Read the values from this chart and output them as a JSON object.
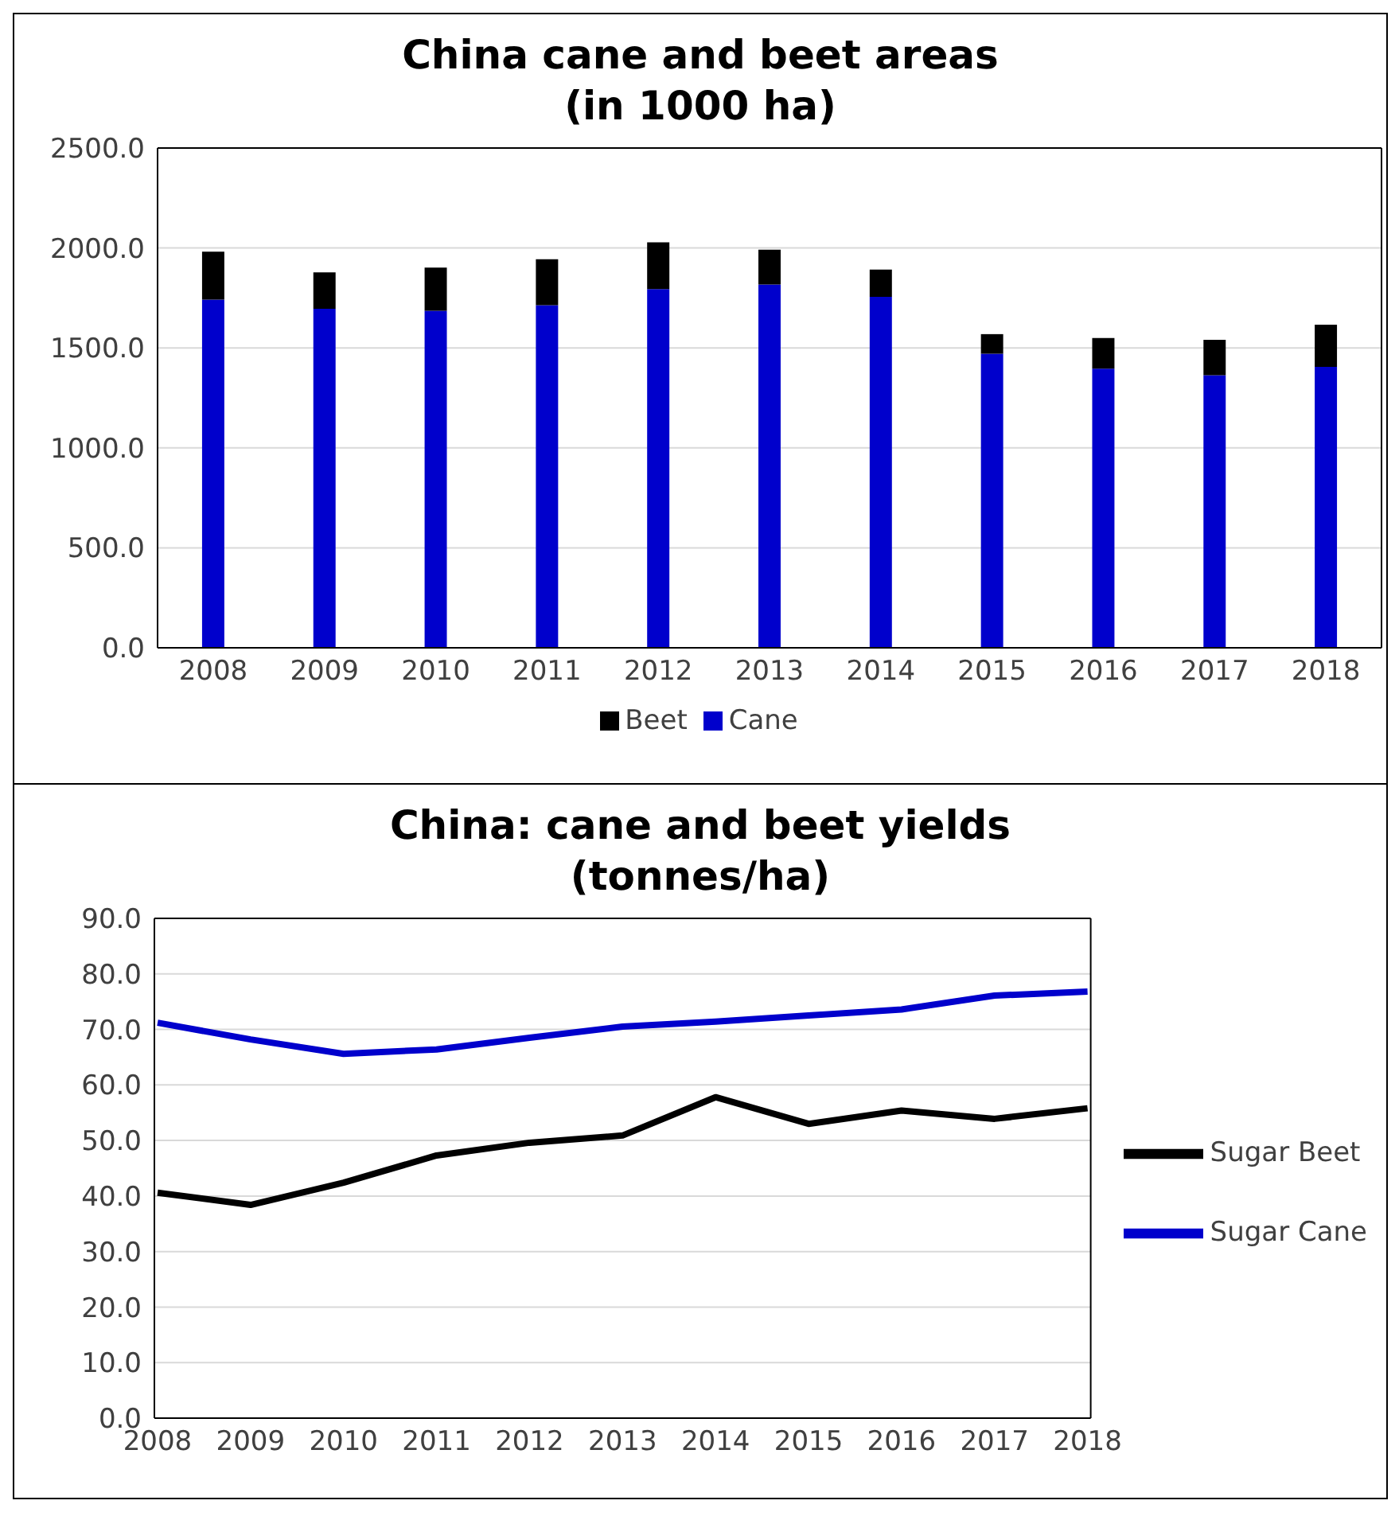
{
  "chart_data": [
    {
      "type": "bar",
      "title": "China cane and beet areas\n(in 1000 ha)",
      "categories": [
        "2008",
        "2009",
        "2010",
        "2011",
        "2012",
        "2013",
        "2014",
        "2015",
        "2016",
        "2017",
        "2018"
      ],
      "stacked": true,
      "series": [
        {
          "name": "Cane",
          "color": "#0000cc",
          "values": [
            1742,
            1696,
            1686,
            1714,
            1794,
            1817,
            1756,
            1471,
            1396,
            1363,
            1405
          ]
        },
        {
          "name": "Beet",
          "color": "#000000",
          "values": [
            239,
            182,
            216,
            230,
            234,
            174,
            136,
            98,
            154,
            178,
            211
          ]
        }
      ],
      "ylim": [
        0,
        2500
      ],
      "yticks": [
        {
          "value": 0,
          "label": "0.0"
        },
        {
          "value": 500,
          "label": "500.0"
        },
        {
          "value": 1000,
          "label": "1000.0"
        },
        {
          "value": 1500,
          "label": "1500.0"
        },
        {
          "value": 2000,
          "label": "2000.0"
        },
        {
          "value": 2500,
          "label": "2500.0"
        }
      ],
      "grid": "y",
      "legend": "bottom"
    },
    {
      "type": "line",
      "title": "China: cane and beet yields\n(tonnes/ha)",
      "categories": [
        "2008",
        "2009",
        "2010",
        "2011",
        "2012",
        "2013",
        "2014",
        "2015",
        "2016",
        "2017",
        "2018"
      ],
      "series": [
        {
          "name": "Sugar Cane",
          "color": "#0000cc",
          "values": [
            71.2,
            68.2,
            65.6,
            66.4,
            68.5,
            70.5,
            71.4,
            72.5,
            73.6,
            76.1,
            76.8
          ]
        },
        {
          "name": "Sugar Beet",
          "color": "#000000",
          "values": [
            40.6,
            38.4,
            42.4,
            47.3,
            49.6,
            50.9,
            57.8,
            53.0,
            55.4,
            53.9,
            55.8
          ]
        }
      ],
      "ylim": [
        0,
        90
      ],
      "yticks": [
        {
          "value": 0,
          "label": "0.0"
        },
        {
          "value": 10,
          "label": "10.0"
        },
        {
          "value": 20,
          "label": "20.0"
        },
        {
          "value": 30,
          "label": "30.0"
        },
        {
          "value": 40,
          "label": "40.0"
        },
        {
          "value": 50,
          "label": "50.0"
        },
        {
          "value": 60,
          "label": "60.0"
        },
        {
          "value": 70,
          "label": "70.0"
        },
        {
          "value": 80,
          "label": "80.0"
        },
        {
          "value": 90,
          "label": "90.0"
        }
      ],
      "grid": "y",
      "legend": "right",
      "marker": "none",
      "line_style": "solid"
    }
  ]
}
